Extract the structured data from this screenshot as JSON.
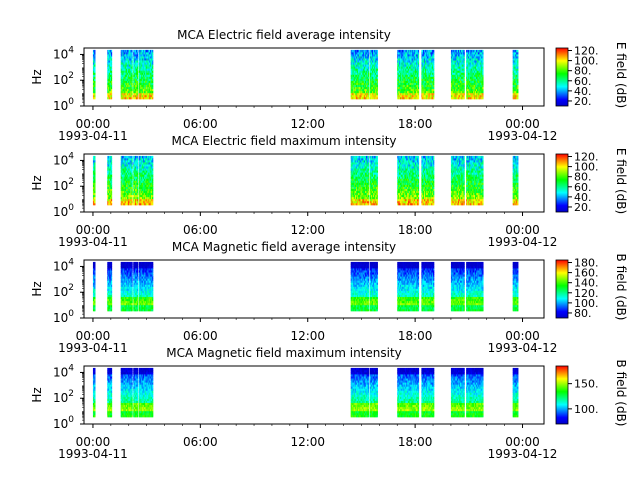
{
  "chart_data": [
    {
      "type": "heatmap",
      "title": "MCA  Electric field average intensity",
      "ylabel": "Hz",
      "colorbar_label": "E field (dB)",
      "colorbar_range": [
        10,
        125
      ],
      "colorbar_ticks": [
        "20.",
        "40.",
        "60.",
        "80.",
        "100.",
        "120."
      ],
      "colorbar_tick_values": [
        20,
        40,
        60,
        80,
        100,
        120
      ],
      "x_ticks": [
        "00:00",
        "06:00",
        "12:00",
        "18:00",
        "00:00"
      ],
      "x_tick_hours": [
        0,
        6,
        12,
        18,
        24
      ],
      "x_date_labels": [
        "1993-04-11",
        "1993-04-12"
      ],
      "xlim_hours": [
        -0.5,
        25.2
      ],
      "y_scale": "log",
      "y_ticks": [
        "10^0",
        "10^2",
        "10^4"
      ],
      "ylim_log10": [
        0,
        4.5
      ],
      "pattern": "electric",
      "data_intervals_hours": [
        [
          0.0,
          0.12
        ],
        [
          0.8,
          1.05
        ],
        [
          1.55,
          2.2
        ],
        [
          2.25,
          2.5
        ],
        [
          2.55,
          3.35
        ],
        [
          14.4,
          15.4
        ],
        [
          15.45,
          15.9
        ],
        [
          17.0,
          18.2
        ],
        [
          18.35,
          19.05
        ],
        [
          20.0,
          20.75
        ],
        [
          20.85,
          21.8
        ],
        [
          23.45,
          23.75
        ]
      ],
      "grid": false
    },
    {
      "type": "heatmap",
      "title": "MCA  Electric field maximum intensity",
      "ylabel": "Hz",
      "colorbar_label": "E field (dB)",
      "colorbar_range": [
        10,
        125
      ],
      "colorbar_ticks": [
        "20.",
        "40.",
        "60.",
        "80.",
        "100.",
        "120."
      ],
      "colorbar_tick_values": [
        20,
        40,
        60,
        80,
        100,
        120
      ],
      "x_ticks": [
        "00:00",
        "06:00",
        "12:00",
        "18:00",
        "00:00"
      ],
      "x_tick_hours": [
        0,
        6,
        12,
        18,
        24
      ],
      "x_date_labels": [
        "1993-04-11",
        "1993-04-12"
      ],
      "xlim_hours": [
        -0.5,
        25.2
      ],
      "y_scale": "log",
      "y_ticks": [
        "10^0",
        "10^2",
        "10^4"
      ],
      "ylim_log10": [
        0,
        4.5
      ],
      "pattern": "electric",
      "data_intervals_hours": [
        [
          0.0,
          0.12
        ],
        [
          0.8,
          1.05
        ],
        [
          1.55,
          2.2
        ],
        [
          2.25,
          2.5
        ],
        [
          2.55,
          3.35
        ],
        [
          14.4,
          15.4
        ],
        [
          15.45,
          15.9
        ],
        [
          17.0,
          18.2
        ],
        [
          18.35,
          19.05
        ],
        [
          20.0,
          20.75
        ],
        [
          20.85,
          21.8
        ],
        [
          23.45,
          23.75
        ]
      ],
      "grid": false
    },
    {
      "type": "heatmap",
      "title": "MCA  Magnetic field average intensity",
      "ylabel": "Hz",
      "colorbar_label": "B field (dB)",
      "colorbar_range": [
        70,
        185
      ],
      "colorbar_ticks": [
        "80.",
        "100.",
        "120.",
        "140.",
        "160.",
        "180."
      ],
      "colorbar_tick_values": [
        80,
        100,
        120,
        140,
        160,
        180
      ],
      "x_ticks": [
        "00:00",
        "06:00",
        "12:00",
        "18:00",
        "00:00"
      ],
      "x_tick_hours": [
        0,
        6,
        12,
        18,
        24
      ],
      "x_date_labels": [
        "1993-04-11",
        "1993-04-12"
      ],
      "xlim_hours": [
        -0.5,
        25.2
      ],
      "y_scale": "log",
      "y_ticks": [
        "10^0",
        "10^2",
        "10^4"
      ],
      "ylim_log10": [
        0,
        4.5
      ],
      "pattern": "magnetic",
      "data_intervals_hours": [
        [
          0.0,
          0.12
        ],
        [
          0.8,
          1.05
        ],
        [
          1.55,
          2.2
        ],
        [
          2.25,
          2.5
        ],
        [
          2.55,
          3.35
        ],
        [
          14.4,
          15.4
        ],
        [
          15.45,
          15.9
        ],
        [
          17.0,
          18.2
        ],
        [
          18.35,
          19.05
        ],
        [
          20.0,
          20.75
        ],
        [
          20.85,
          21.8
        ],
        [
          23.45,
          23.75
        ]
      ],
      "grid": false
    },
    {
      "type": "heatmap",
      "title": "MCA  Magnetic field maximum intensity",
      "ylabel": "Hz",
      "colorbar_label": "B field (dB)",
      "colorbar_range": [
        70,
        185
      ],
      "colorbar_ticks": [
        "100.",
        "150."
      ],
      "colorbar_tick_values": [
        100,
        150
      ],
      "x_ticks": [
        "00:00",
        "06:00",
        "12:00",
        "18:00",
        "00:00"
      ],
      "x_tick_hours": [
        0,
        6,
        12,
        18,
        24
      ],
      "x_date_labels": [
        "1993-04-11",
        "1993-04-12"
      ],
      "xlim_hours": [
        -0.5,
        25.2
      ],
      "y_scale": "log",
      "y_ticks": [
        "10^0",
        "10^2",
        "10^4"
      ],
      "ylim_log10": [
        0,
        4.5
      ],
      "pattern": "magnetic",
      "data_intervals_hours": [
        [
          0.0,
          0.12
        ],
        [
          0.8,
          1.05
        ],
        [
          1.55,
          2.2
        ],
        [
          2.25,
          2.5
        ],
        [
          2.55,
          3.35
        ],
        [
          14.4,
          15.4
        ],
        [
          15.45,
          15.9
        ],
        [
          17.0,
          18.2
        ],
        [
          18.35,
          19.05
        ],
        [
          20.0,
          20.75
        ],
        [
          20.85,
          21.8
        ],
        [
          23.45,
          23.75
        ]
      ],
      "grid": false
    }
  ],
  "colormap": [
    "#0000c8",
    "#0000ff",
    "#0080ff",
    "#00ffff",
    "#00ff80",
    "#00ff00",
    "#80ff00",
    "#ffff00",
    "#ff8000",
    "#ff0000"
  ]
}
